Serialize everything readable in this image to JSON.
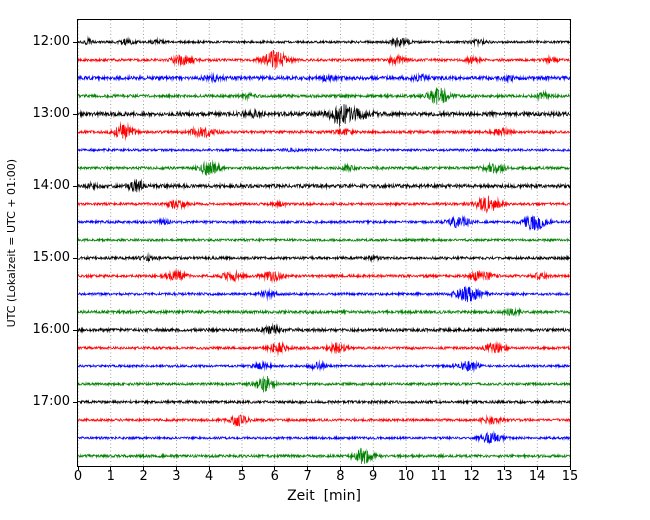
{
  "figure": {
    "background": "#ffffff"
  },
  "chart_data": {
    "type": "line",
    "subtype": "helicorder-seismogram",
    "title": "",
    "xlabel": "Zeit  [min]",
    "ylabel": "UTC (Lokalzeit = UTC + 01:00)",
    "xlim": [
      0,
      15
    ],
    "x_ticks": [
      0,
      1,
      2,
      3,
      4,
      5,
      6,
      7,
      8,
      9,
      10,
      11,
      12,
      13,
      14,
      15
    ],
    "y_tick_labels": [
      "12:00",
      "13:00",
      "14:00",
      "15:00",
      "16:00",
      "17:00"
    ],
    "minutes_per_line": 15,
    "grid": {
      "vertical": true,
      "style": "dotted",
      "color": "#777777"
    },
    "colors_cycle": [
      "#000000",
      "#ff0000",
      "#0000ff",
      "#008000"
    ],
    "traces": [
      {
        "start": "12:00",
        "color": "#000000",
        "noise": 0.13,
        "events": [
          {
            "t": 0.3,
            "a": 0.4,
            "d": 0.2
          },
          {
            "t": 1.5,
            "a": 0.22,
            "d": 0.5
          },
          {
            "t": 2.4,
            "a": 0.18,
            "d": 0.4
          },
          {
            "t": 9.8,
            "a": 0.35,
            "d": 0.6
          },
          {
            "t": 12.2,
            "a": 0.2,
            "d": 0.5
          }
        ]
      },
      {
        "start": "12:15",
        "color": "#ff0000",
        "noise": 0.14,
        "events": [
          {
            "t": 3.2,
            "a": 0.5,
            "d": 0.7
          },
          {
            "t": 6.0,
            "a": 0.95,
            "d": 0.8
          },
          {
            "t": 9.7,
            "a": 0.35,
            "d": 0.6
          },
          {
            "t": 12.0,
            "a": 0.3,
            "d": 0.5
          },
          {
            "t": 14.4,
            "a": 0.25,
            "d": 0.4
          }
        ]
      },
      {
        "start": "12:30",
        "color": "#0000ff",
        "noise": 0.2,
        "events": [
          {
            "t": 4.1,
            "a": 0.25,
            "d": 0.6
          },
          {
            "t": 7.6,
            "a": 0.2,
            "d": 0.5
          },
          {
            "t": 10.4,
            "a": 0.25,
            "d": 0.5
          },
          {
            "t": 13.1,
            "a": 0.2,
            "d": 0.4
          }
        ]
      },
      {
        "start": "12:45",
        "color": "#008000",
        "noise": 0.16,
        "events": [
          {
            "t": 5.2,
            "a": 0.2,
            "d": 0.5
          },
          {
            "t": 11.0,
            "a": 0.85,
            "d": 0.7
          },
          {
            "t": 14.2,
            "a": 0.3,
            "d": 0.5
          }
        ]
      },
      {
        "start": "13:00",
        "color": "#000000",
        "noise": 0.22,
        "events": [
          {
            "t": 5.3,
            "a": 0.3,
            "d": 0.5
          },
          {
            "t": 8.0,
            "a": 1.0,
            "d": 0.7
          },
          {
            "t": 8.6,
            "a": 0.4,
            "d": 0.8
          }
        ]
      },
      {
        "start": "13:15",
        "color": "#ff0000",
        "noise": 0.15,
        "events": [
          {
            "t": 1.4,
            "a": 0.85,
            "d": 0.6
          },
          {
            "t": 3.8,
            "a": 0.5,
            "d": 0.8
          },
          {
            "t": 8.1,
            "a": 0.2,
            "d": 0.5
          },
          {
            "t": 12.9,
            "a": 0.3,
            "d": 0.6
          }
        ]
      },
      {
        "start": "13:30",
        "color": "#0000ff",
        "noise": 0.13,
        "events": [
          {
            "t": 6.5,
            "a": 0.12,
            "d": 0.5
          }
        ]
      },
      {
        "start": "13:45",
        "color": "#008000",
        "noise": 0.15,
        "events": [
          {
            "t": 4.0,
            "a": 0.8,
            "d": 0.6
          },
          {
            "t": 8.2,
            "a": 0.2,
            "d": 0.5
          },
          {
            "t": 12.7,
            "a": 0.45,
            "d": 0.7
          }
        ]
      },
      {
        "start": "14:00",
        "color": "#000000",
        "noise": 0.2,
        "events": [
          {
            "t": 0.4,
            "a": 0.2,
            "d": 0.3
          },
          {
            "t": 1.8,
            "a": 0.55,
            "d": 0.5
          }
        ]
      },
      {
        "start": "14:15",
        "color": "#ff0000",
        "noise": 0.14,
        "events": [
          {
            "t": 3.0,
            "a": 0.45,
            "d": 0.6
          },
          {
            "t": 6.1,
            "a": 0.2,
            "d": 0.5
          },
          {
            "t": 12.5,
            "a": 0.8,
            "d": 0.8
          }
        ]
      },
      {
        "start": "14:30",
        "color": "#0000ff",
        "noise": 0.14,
        "events": [
          {
            "t": 2.6,
            "a": 0.2,
            "d": 0.4
          },
          {
            "t": 11.6,
            "a": 0.55,
            "d": 0.7
          },
          {
            "t": 13.9,
            "a": 0.95,
            "d": 0.7
          }
        ]
      },
      {
        "start": "14:45",
        "color": "#008000",
        "noise": 0.13,
        "events": []
      },
      {
        "start": "15:00",
        "color": "#000000",
        "noise": 0.15,
        "events": [
          {
            "t": 2.1,
            "a": 0.18,
            "d": 0.5
          },
          {
            "t": 9.0,
            "a": 0.15,
            "d": 0.5
          }
        ]
      },
      {
        "start": "15:15",
        "color": "#ff0000",
        "noise": 0.15,
        "events": [
          {
            "t": 3.0,
            "a": 0.45,
            "d": 0.6
          },
          {
            "t": 4.7,
            "a": 0.45,
            "d": 0.6
          },
          {
            "t": 5.9,
            "a": 0.5,
            "d": 0.6
          },
          {
            "t": 12.3,
            "a": 0.5,
            "d": 0.7
          },
          {
            "t": 14.1,
            "a": 0.25,
            "d": 0.5
          }
        ]
      },
      {
        "start": "15:30",
        "color": "#0000ff",
        "noise": 0.14,
        "events": [
          {
            "t": 5.8,
            "a": 0.35,
            "d": 0.5
          },
          {
            "t": 11.9,
            "a": 0.85,
            "d": 0.8
          }
        ]
      },
      {
        "start": "15:45",
        "color": "#008000",
        "noise": 0.16,
        "events": [
          {
            "t": 13.2,
            "a": 0.25,
            "d": 0.5
          }
        ]
      },
      {
        "start": "16:00",
        "color": "#000000",
        "noise": 0.17,
        "events": [
          {
            "t": 5.9,
            "a": 0.4,
            "d": 0.5
          }
        ]
      },
      {
        "start": "16:15",
        "color": "#ff0000",
        "noise": 0.14,
        "events": [
          {
            "t": 6.1,
            "a": 0.5,
            "d": 0.6
          },
          {
            "t": 7.9,
            "a": 0.55,
            "d": 0.6
          },
          {
            "t": 12.7,
            "a": 0.5,
            "d": 0.6
          }
        ]
      },
      {
        "start": "16:30",
        "color": "#0000ff",
        "noise": 0.13,
        "events": [
          {
            "t": 5.6,
            "a": 0.3,
            "d": 0.5
          },
          {
            "t": 7.3,
            "a": 0.35,
            "d": 0.5
          },
          {
            "t": 11.9,
            "a": 0.5,
            "d": 0.7
          }
        ]
      },
      {
        "start": "16:45",
        "color": "#008000",
        "noise": 0.14,
        "events": [
          {
            "t": 5.7,
            "a": 0.85,
            "d": 0.6
          }
        ]
      },
      {
        "start": "17:00",
        "color": "#000000",
        "noise": 0.15,
        "events": []
      },
      {
        "start": "17:15",
        "color": "#ff0000",
        "noise": 0.14,
        "events": [
          {
            "t": 4.9,
            "a": 0.55,
            "d": 0.6
          },
          {
            "t": 12.6,
            "a": 0.35,
            "d": 0.6
          }
        ]
      },
      {
        "start": "17:30",
        "color": "#0000ff",
        "noise": 0.13,
        "events": [
          {
            "t": 12.6,
            "a": 0.5,
            "d": 0.7
          }
        ]
      },
      {
        "start": "17:45",
        "color": "#008000",
        "noise": 0.15,
        "events": [
          {
            "t": 8.7,
            "a": 0.8,
            "d": 0.6
          }
        ]
      }
    ]
  }
}
